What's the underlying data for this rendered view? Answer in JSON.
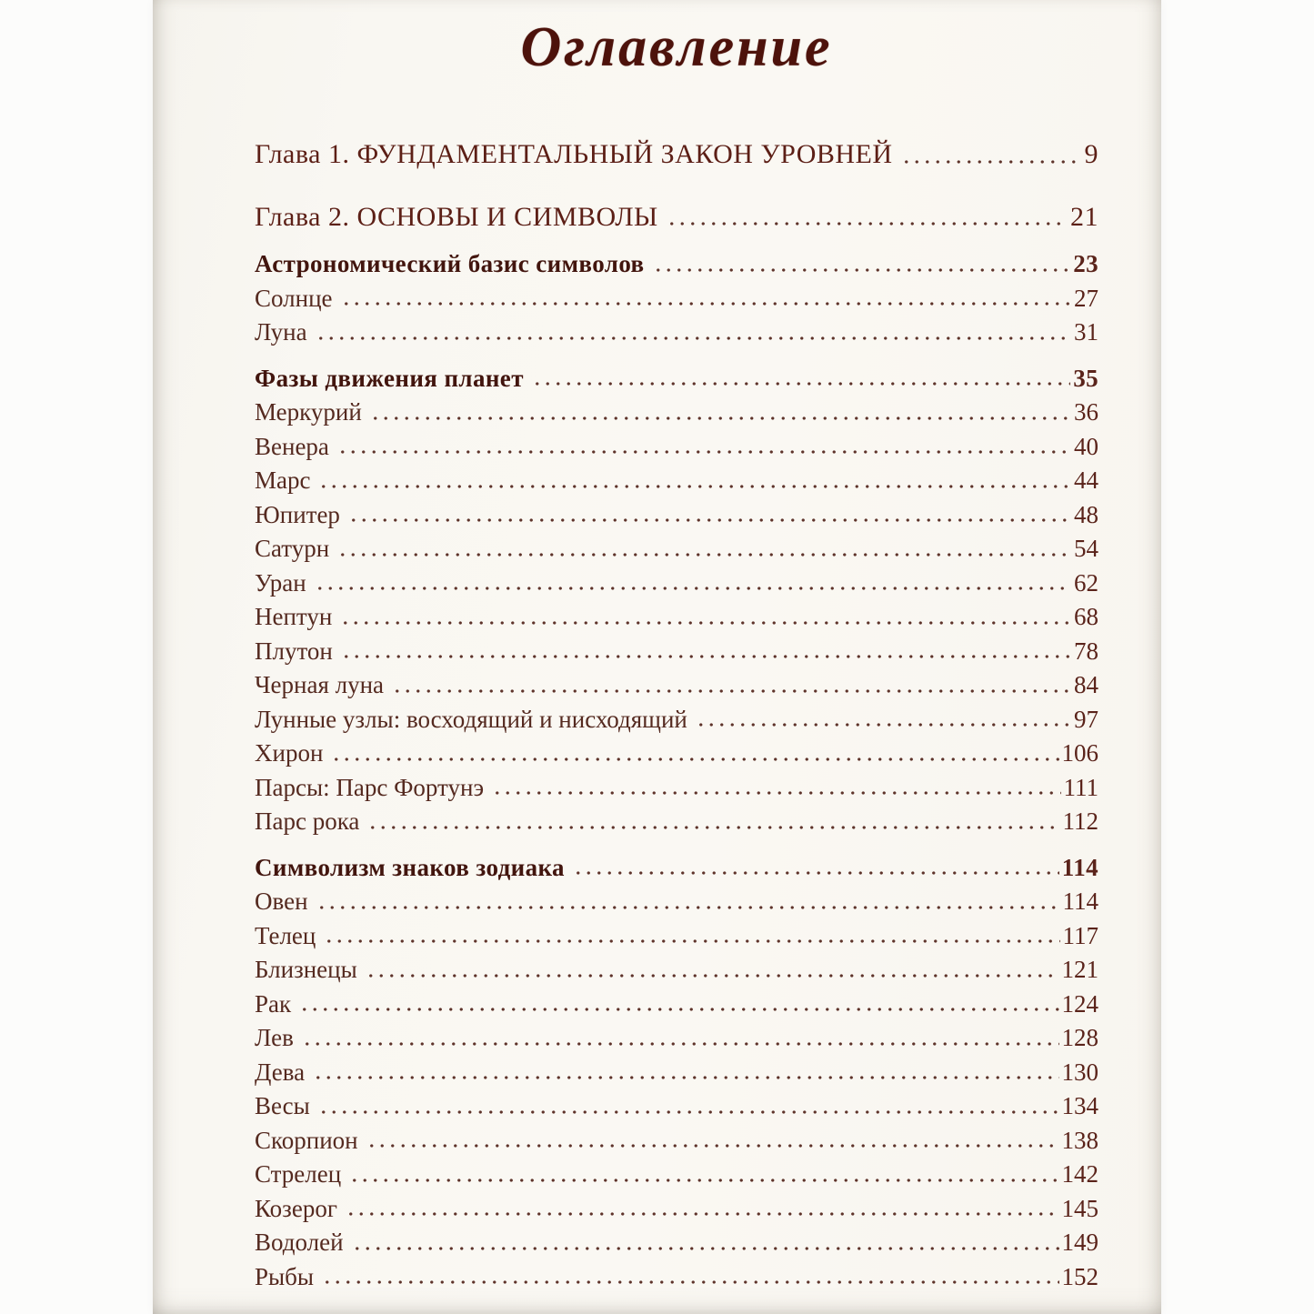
{
  "document": {
    "title": "Оглавление",
    "toc": [
      {
        "label": "Глава 1. ФУНДАМЕНТАЛЬНЫЙ ЗАКОН УРОВНЕЙ",
        "page": "9",
        "style": "chapter"
      },
      {
        "label": "Глава 2. ОСНОВЫ И СИМВОЛЫ",
        "page": "21",
        "style": "chapter"
      },
      {
        "label": "Астрономический базис символов",
        "page": "23",
        "style": "section"
      },
      {
        "label": "Солнце",
        "page": "27",
        "style": "entry"
      },
      {
        "label": "Луна",
        "page": "31",
        "style": "entry"
      },
      {
        "label": "Фазы движения планет",
        "page": "35",
        "style": "section"
      },
      {
        "label": "Меркурий",
        "page": "36",
        "style": "entry"
      },
      {
        "label": "Венера",
        "page": "40",
        "style": "entry"
      },
      {
        "label": "Марс",
        "page": "44",
        "style": "entry"
      },
      {
        "label": "Юпитер",
        "page": "48",
        "style": "entry"
      },
      {
        "label": "Сатурн",
        "page": "54",
        "style": "entry"
      },
      {
        "label": "Уран",
        "page": "62",
        "style": "entry"
      },
      {
        "label": "Нептун",
        "page": "68",
        "style": "entry"
      },
      {
        "label": "Плутон",
        "page": "78",
        "style": "entry"
      },
      {
        "label": "Черная луна",
        "page": "84",
        "style": "entry"
      },
      {
        "label": "Лунные узлы: восходящий и нисходящий",
        "page": "97",
        "style": "entry"
      },
      {
        "label": "Хирон",
        "page": "106",
        "style": "entry"
      },
      {
        "label": "Парсы: Парс Фортунэ",
        "page": "111",
        "style": "entry"
      },
      {
        "label": "Парс рока",
        "page": "112",
        "style": "entry"
      },
      {
        "label": "Символизм знаков зодиака",
        "page": "114",
        "style": "section"
      },
      {
        "label": "Овен",
        "page": "114",
        "style": "entry"
      },
      {
        "label": "Телец",
        "page": "117",
        "style": "entry"
      },
      {
        "label": "Близнецы",
        "page": "121",
        "style": "entry"
      },
      {
        "label": "Рак",
        "page": "124",
        "style": "entry"
      },
      {
        "label": "Лев",
        "page": "128",
        "style": "entry"
      },
      {
        "label": "Дева",
        "page": "130",
        "style": "entry"
      },
      {
        "label": "Весы",
        "page": "134",
        "style": "entry"
      },
      {
        "label": "Скорпион",
        "page": "138",
        "style": "entry"
      },
      {
        "label": "Стрелец",
        "page": "142",
        "style": "entry"
      },
      {
        "label": "Козерог",
        "page": "145",
        "style": "entry"
      },
      {
        "label": "Водолей",
        "page": "149",
        "style": "entry"
      },
      {
        "label": "Рыбы",
        "page": "152",
        "style": "entry"
      }
    ]
  },
  "colors": {
    "title": "#4d120b",
    "chapter": "#5c1f16",
    "section": "#42150e",
    "entry": "#552a20",
    "number": "#5a231a",
    "dots": "#5e332a",
    "page-bg": "#f9f7f2",
    "backdrop": "#fcfcfb"
  }
}
